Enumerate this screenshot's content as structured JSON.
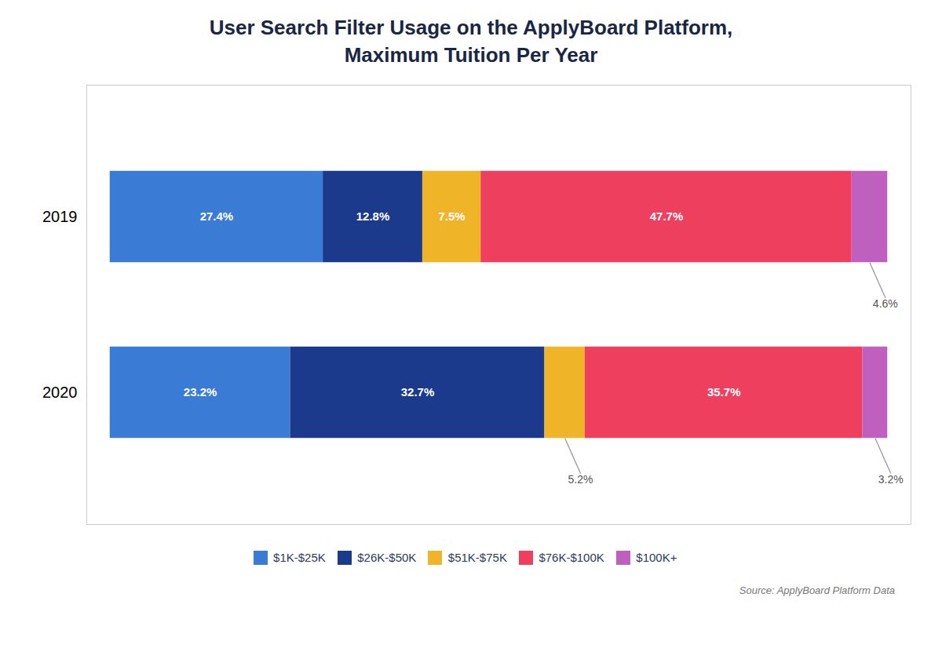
{
  "chart_data": {
    "type": "bar",
    "orientation": "horizontal",
    "stacked": true,
    "title": "User Search Filter Usage on the ApplyBoard Platform,\nMaximum Tuition Per Year",
    "caption": "Source: ApplyBoard Platform Data",
    "categories": [
      "2019",
      "2020"
    ],
    "series": [
      {
        "name": "$1K-$25K",
        "color": "#3A7BD5",
        "values": [
          27.4,
          23.2
        ],
        "value_labels": [
          "27.4%",
          "23.2%"
        ]
      },
      {
        "name": "$26K-$50K",
        "color": "#1B3A8C",
        "values": [
          12.8,
          32.7
        ],
        "value_labels": [
          "12.8%",
          "32.7%"
        ]
      },
      {
        "name": "$51K-$75K",
        "color": "#F0B429",
        "values": [
          7.5,
          5.2
        ],
        "value_labels": [
          "7.5%",
          "5.2%"
        ]
      },
      {
        "name": "$76K-$100K",
        "color": "#EF3F5F",
        "values": [
          47.7,
          35.7
        ],
        "value_labels": [
          "47.7%",
          "35.7%"
        ]
      },
      {
        "name": "$100K+",
        "color": "#C060BE",
        "values": [
          4.6,
          3.2
        ],
        "value_labels": [
          "4.6%",
          "3.2%"
        ]
      }
    ],
    "xlim": [
      -3,
      103
    ],
    "tick_labels": "y",
    "grid": false,
    "data_labels": true,
    "legend": "bottom"
  }
}
